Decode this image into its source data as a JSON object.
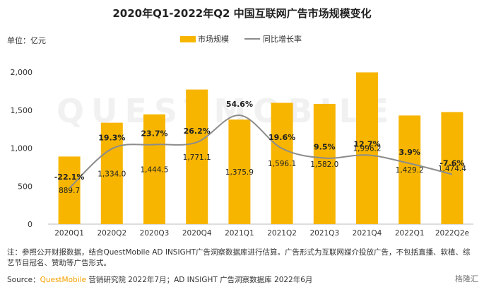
{
  "title": "2020年Q1-2022年Q2 中国互联网广告市场规模变化",
  "unit": "单位：亿元",
  "legend": {
    "bar": "市场规模",
    "line": "同比增长率"
  },
  "note": "注：参照公开财报数据，结合QuestMobile AD INSIGHT广告洞察数据库进行估算。广告形式为互联网媒介投放广告，不包括直播、软植、综艺节目冠名、赞助等广告形式。",
  "source": {
    "prefix": "Source：",
    "brand": "QuestMobile",
    "rest": " 营销研究院 2022年7月；AD INSIGHT 广告洞察数据库 2022年6月"
  },
  "watermark": "QUESTMOBILE",
  "credit": "格隆汇",
  "colors": {
    "bar": "#f7b500",
    "line": "#8c8c8c",
    "text": "#222222"
  },
  "chart_data": {
    "type": "bar",
    "categories": [
      "2020Q1",
      "2020Q2",
      "2020Q3",
      "2020Q4",
      "2021Q1",
      "2021Q2",
      "2021Q3",
      "2021Q4",
      "2022Q1",
      "2022Q2e"
    ],
    "series": [
      {
        "name": "市场规模",
        "type": "bar",
        "values": [
          889.7,
          1334.0,
          1444.5,
          1771.1,
          1375.9,
          1596.1,
          1582.0,
          1996.2,
          1429.2,
          1474.4
        ],
        "labels": [
          "889.7",
          "1,334.0",
          "1,444.5",
          "1,771.1",
          "1,375.9",
          "1,596.1",
          "1,582.0",
          "1,996.2",
          "1,429.2",
          "1,474.4"
        ]
      },
      {
        "name": "同比增长率",
        "type": "line",
        "values": [
          -22.1,
          19.3,
          23.7,
          26.2,
          54.6,
          19.6,
          9.5,
          12.7,
          3.9,
          -7.6
        ],
        "labels": [
          "-22.1%",
          "19.3%",
          "23.7%",
          "26.2%",
          "54.6%",
          "19.6%",
          "9.5%",
          "12.7%",
          "3.9%",
          "-7.6%"
        ]
      }
    ],
    "y_ticks": [
      "0",
      "500",
      "1,000",
      "1,500",
      "2,000"
    ],
    "ylim": [
      0,
      2000
    ],
    "y2lim": [
      -60,
      100
    ],
    "grid": false
  }
}
